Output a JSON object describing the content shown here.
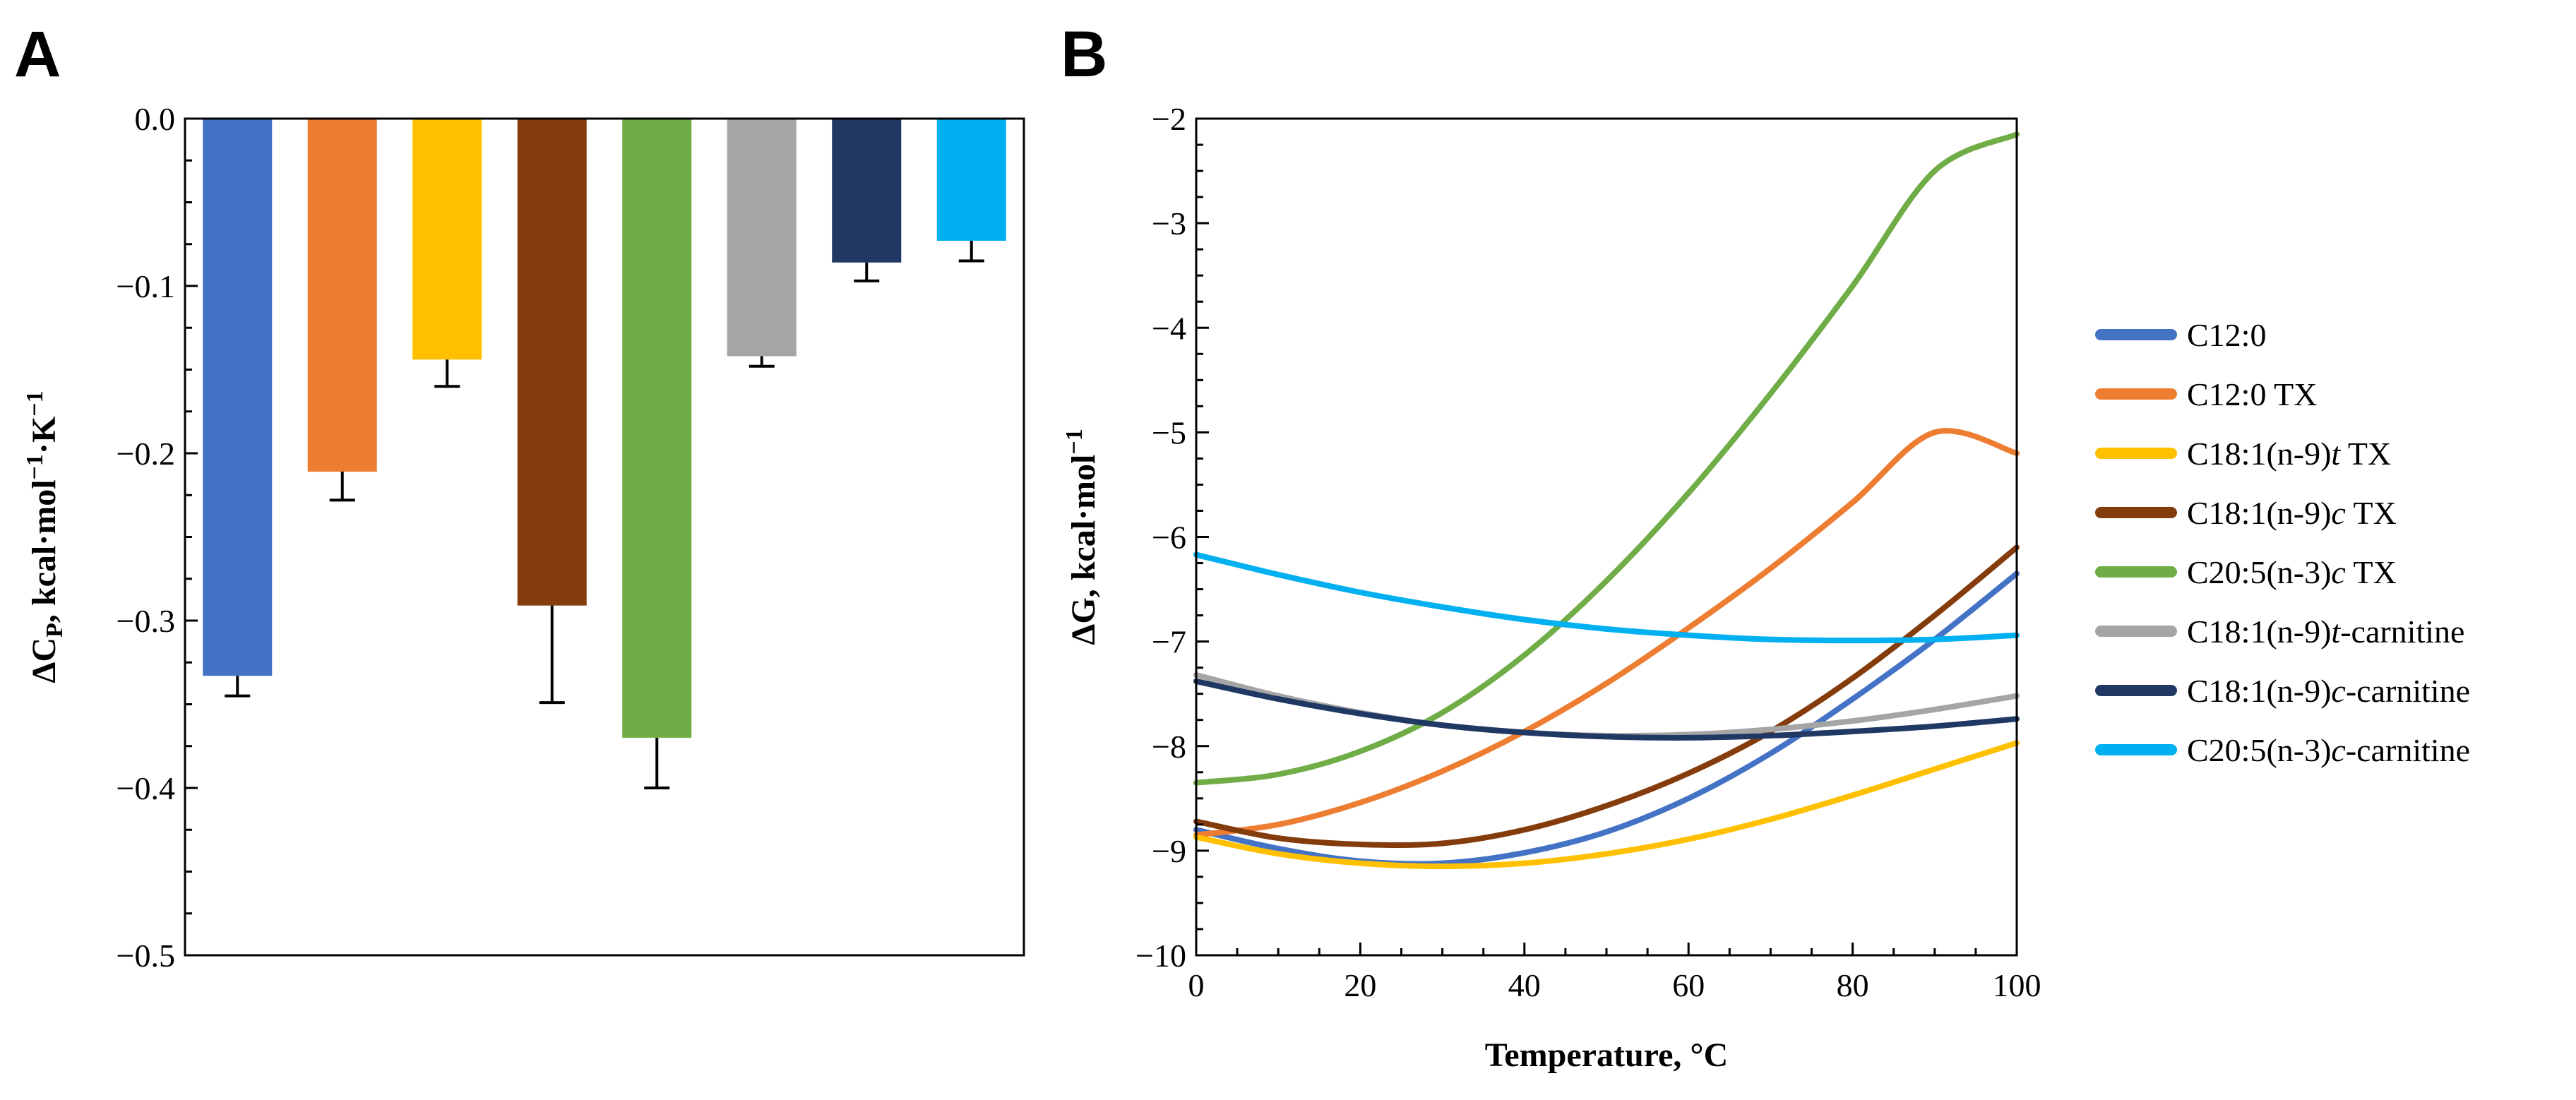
{
  "panels": {
    "a": "A",
    "b": "B"
  },
  "chart_data": [
    {
      "panel": "A",
      "type": "bar",
      "ylabel_main": "ΔC",
      "ylabel_sub": "P",
      "ylabel_rest": ", kcal·mol",
      "ylabel_sup1": "−1",
      "ylabel_mid": "·K",
      "ylabel_sup2": "−1",
      "ylim": [
        -0.5,
        0.0
      ],
      "yticks": [
        0.0,
        -0.1,
        -0.2,
        -0.3,
        -0.4,
        -0.5
      ],
      "ytick_labels": [
        "0.0",
        "−0.1",
        "−0.2",
        "−0.3",
        "−0.4",
        "−0.5"
      ],
      "categories": [
        "C12:0",
        "C12:0 TX",
        "C18:1(n-9)t TX",
        "C18:1(n-9)c TX",
        "C20:5(n-3)c TX",
        "C18:1(n-9)t-carnitine",
        "C18:1(n-9)c-carnitine",
        "C20:5(n-3)c-carnitine"
      ],
      "values": [
        -0.333,
        -0.211,
        -0.144,
        -0.291,
        -0.37,
        -0.142,
        -0.086,
        -0.073
      ],
      "errors": [
        0.012,
        0.017,
        0.016,
        0.058,
        0.03,
        0.006,
        0.011,
        0.012
      ],
      "colors": [
        "#4472C4",
        "#ED7D31",
        "#FFC000",
        "#843C0C",
        "#70AD47",
        "#A5A5A5",
        "#203864",
        "#00B0F0"
      ]
    },
    {
      "panel": "B",
      "type": "line",
      "xlabel": "Temperature, °C",
      "ylabel_main": "ΔG, kcal·mol",
      "ylabel_sup": "−1",
      "xlim": [
        0,
        100
      ],
      "ylim": [
        -10,
        -2
      ],
      "xticks": [
        0,
        20,
        40,
        60,
        80,
        100
      ],
      "xtick_labels": [
        "0",
        "20",
        "40",
        "60",
        "80",
        "100"
      ],
      "yticks": [
        -2,
        -3,
        -4,
        -5,
        -6,
        -7,
        -8,
        -9,
        -10
      ],
      "ytick_labels": [
        "−2",
        "−3",
        "−4",
        "−5",
        "−6",
        "−7",
        "−8",
        "−9",
        "−10"
      ],
      "x": [
        0,
        10,
        20,
        30,
        40,
        50,
        60,
        70,
        80,
        90,
        100
      ],
      "series": [
        {
          "name": "C12:0",
          "color": "#4472C4",
          "values": [
            -8.8,
            -8.98,
            -9.1,
            -9.12,
            -9.02,
            -8.82,
            -8.5,
            -8.07,
            -7.55,
            -6.98,
            -6.35
          ]
        },
        {
          "name": "C12:0 TX",
          "color": "#ED7D31",
          "values": [
            -8.85,
            -8.75,
            -8.54,
            -8.24,
            -7.86,
            -7.4,
            -6.87,
            -6.3,
            -5.67,
            -5.0,
            -5.2
          ]
        },
        {
          "name": "C18:1(n-9)t TX",
          "color": "#FFC000",
          "values": [
            -8.87,
            -9.03,
            -9.12,
            -9.15,
            -9.12,
            -9.03,
            -8.89,
            -8.7,
            -8.47,
            -8.22,
            -7.97
          ]
        },
        {
          "name": "C18:1(n-9)c TX",
          "color": "#843C0C",
          "values": [
            -8.72,
            -8.88,
            -8.94,
            -8.93,
            -8.8,
            -8.57,
            -8.26,
            -7.86,
            -7.35,
            -6.75,
            -6.1
          ]
        },
        {
          "name": "C20:5(n-3)c TX",
          "color": "#70AD47",
          "values": [
            -8.35,
            -8.27,
            -8.05,
            -7.68,
            -7.13,
            -6.42,
            -5.58,
            -4.63,
            -3.6,
            -2.5,
            -2.15
          ]
        },
        {
          "name": "C18:1(n-9)t-carnitine",
          "color": "#A5A5A5",
          "values": [
            -7.32,
            -7.52,
            -7.68,
            -7.8,
            -7.87,
            -7.9,
            -7.89,
            -7.84,
            -7.76,
            -7.65,
            -7.52
          ]
        },
        {
          "name": "C18:1(n-9)c-carnitine",
          "color": "#203864",
          "values": [
            -7.38,
            -7.55,
            -7.69,
            -7.8,
            -7.87,
            -7.91,
            -7.92,
            -7.9,
            -7.86,
            -7.81,
            -7.74
          ]
        },
        {
          "name": "C20:5(n-3)c-carnitine",
          "color": "#00B0F0",
          "values": [
            -6.17,
            -6.36,
            -6.53,
            -6.67,
            -6.79,
            -6.88,
            -6.94,
            -6.98,
            -6.99,
            -6.98,
            -6.94
          ]
        }
      ]
    }
  ]
}
